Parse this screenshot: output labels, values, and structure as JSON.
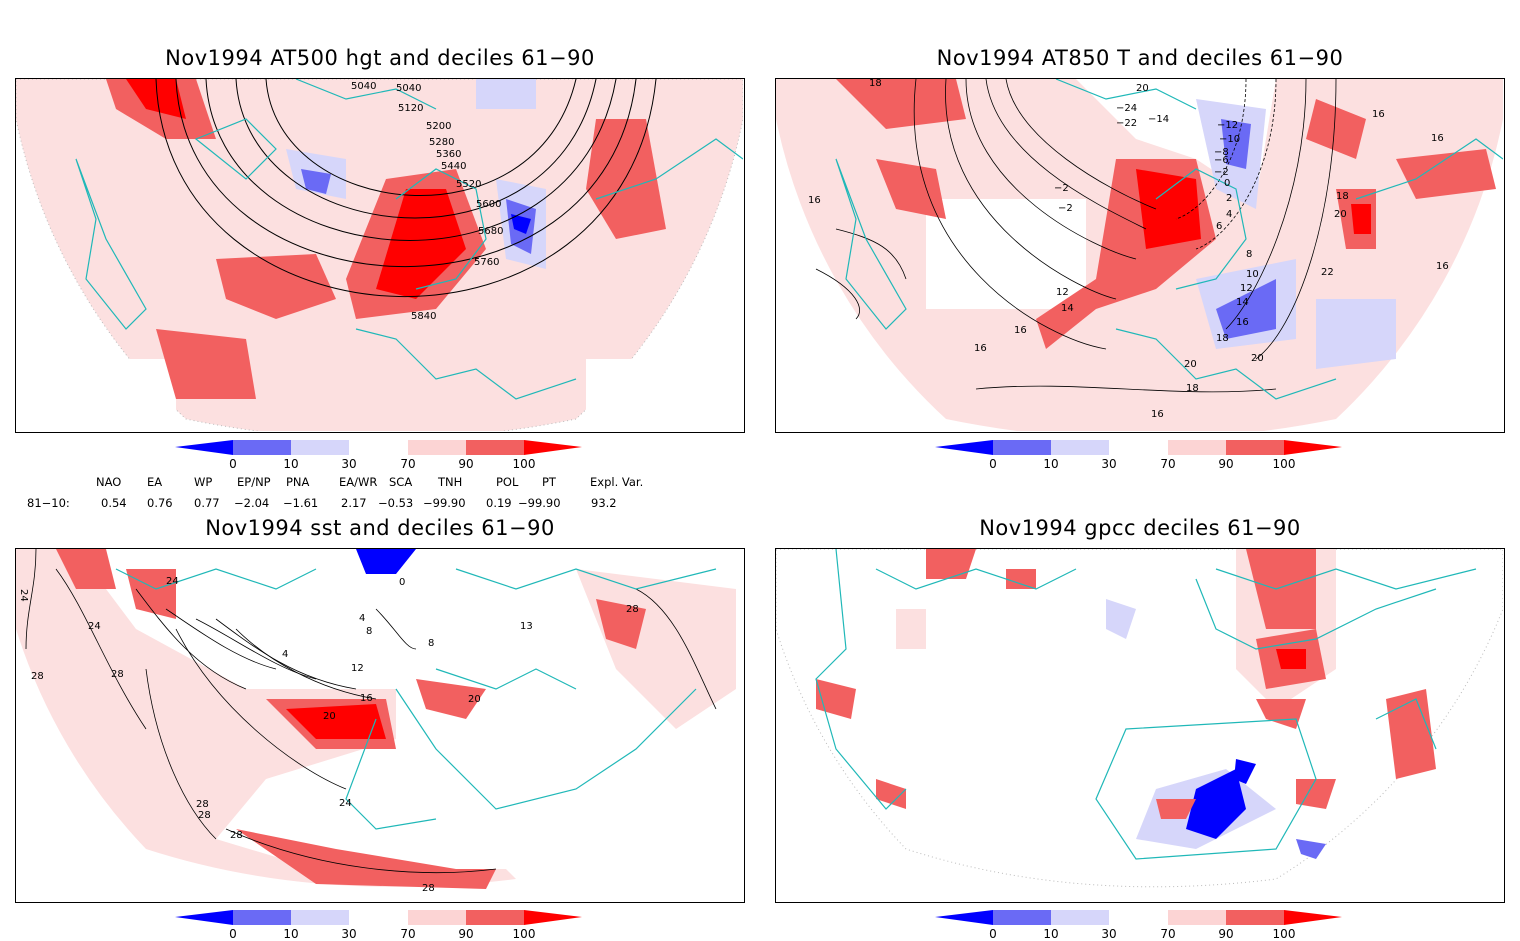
{
  "panels": [
    {
      "title": "Nov1994 AT500 hgt and deciles 61−90",
      "contour_labels": [
        "5040",
        "5040",
        "5120",
        "5200",
        "5280",
        "5360",
        "5440",
        "5520",
        "5600",
        "5680",
        "5760",
        "5840"
      ]
    },
    {
      "title": "Nov1994 AT850 T and deciles 61−90",
      "contour_labels": [
        "18",
        "20",
        "−24",
        "−22",
        "−14",
        "−12",
        "−10",
        "−8",
        "−6",
        "−2",
        "−2",
        "0",
        "2",
        "4",
        "6",
        "−2",
        "16",
        "16",
        "16",
        "18",
        "20",
        "22",
        "16",
        "8",
        "10",
        "12",
        "12",
        "14",
        "14",
        "16",
        "16",
        "18",
        "16",
        "20",
        "20",
        "18",
        "16"
      ]
    },
    {
      "title": "Nov1994 sst and deciles 61−90",
      "contour_labels": [
        "24",
        "24",
        "24",
        "28",
        "28",
        "0",
        "4",
        "4",
        "8",
        "8",
        "12",
        "13",
        "16",
        "20",
        "20",
        "24",
        "28",
        "28",
        "28",
        "28",
        "28"
      ]
    },
    {
      "title": "Nov1994 gpcc deciles 61−90",
      "contour_labels": []
    }
  ],
  "colorbar": {
    "labels": [
      "0",
      "10",
      "30",
      "70",
      "90",
      "100"
    ],
    "colors": [
      "#0000ff",
      "#6a6af5",
      "#d6d6fa",
      "#ffffff",
      "#fcd4d4",
      "#f26060",
      "#ff0000"
    ]
  },
  "indices": {
    "headers": [
      "NAO",
      "EA",
      "WP",
      "EP/NP",
      "PNA",
      "EA/WR",
      "SCA",
      "TNH",
      "POL",
      "PT",
      "Expl. Var."
    ],
    "row_label": "81−10:",
    "values": [
      "0.54",
      "0.76",
      "0.77",
      "−2.04",
      "−1.61",
      "2.17",
      "−0.53",
      "−99.90",
      "0.19",
      "−99.90",
      "93.2"
    ]
  },
  "colors": {
    "coast": "#20b8b8",
    "contour": "#000000",
    "blue_strong": "#0000ff",
    "blue_mid": "#6a6af5",
    "blue_light": "#d6d6fa",
    "red_light": "#fcd4d4",
    "red_mid": "#f26060",
    "red_strong": "#ff0000"
  }
}
